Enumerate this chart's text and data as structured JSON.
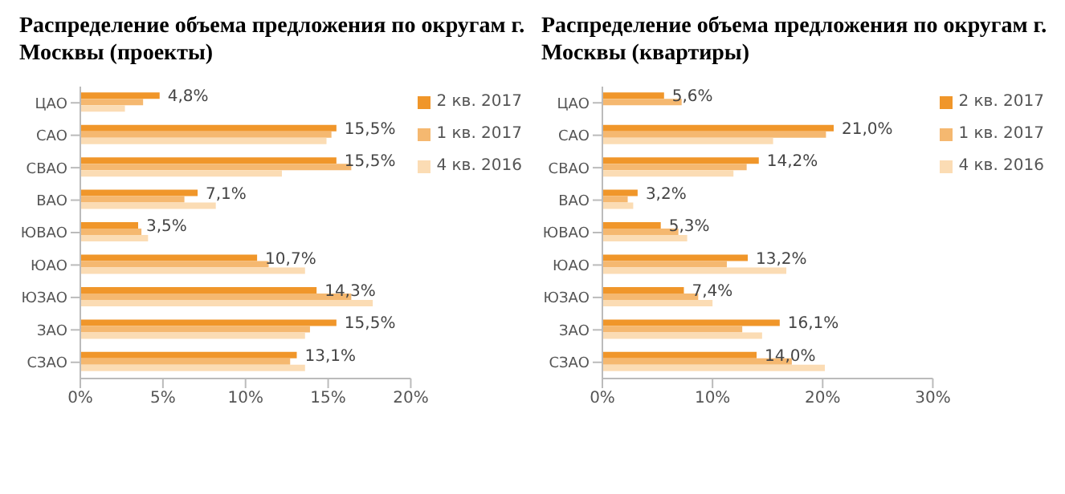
{
  "chart_data": [
    {
      "type": "bar",
      "orientation": "horizontal",
      "title": "Распределение объема предложения по округам г. Москвы (проекты)",
      "categories": [
        "ЦАО",
        "САО",
        "СВАО",
        "ВАО",
        "ЮВАО",
        "ЮАО",
        "ЮЗАО",
        "ЗАО",
        "СЗАО"
      ],
      "series": [
        {
          "name": "2 кв. 2017",
          "color": "#f0962a",
          "values": [
            4.8,
            15.5,
            15.5,
            7.1,
            3.5,
            10.7,
            14.3,
            15.5,
            13.1
          ],
          "value_labels": [
            "4,8%",
            "15,5%",
            "15,5%",
            "7,1%",
            "3,5%",
            "10,7%",
            "14,3%",
            "15,5%",
            "13,1%"
          ]
        },
        {
          "name": "1 кв. 2017",
          "color": "#f5b870",
          "values": [
            3.8,
            15.2,
            16.4,
            6.3,
            3.7,
            11.4,
            16.4,
            13.9,
            12.7
          ]
        },
        {
          "name": "4 кв. 2016",
          "color": "#fbdcb4",
          "values": [
            2.7,
            14.9,
            12.2,
            8.2,
            4.1,
            13.6,
            17.7,
            13.6,
            13.6
          ]
        }
      ],
      "xlim": [
        0,
        20
      ],
      "xticks": [
        {
          "value": 0,
          "label": "0%"
        },
        {
          "value": 5,
          "label": "5%"
        },
        {
          "value": 10,
          "label": "10%"
        },
        {
          "value": 15,
          "label": "15%"
        },
        {
          "value": 20,
          "label": "20%"
        }
      ],
      "legend": "right",
      "grid": false
    },
    {
      "type": "bar",
      "orientation": "horizontal",
      "title": "Распределение объема предложения по округам г. Москвы (квартиры)",
      "categories": [
        "ЦАО",
        "САО",
        "СВАО",
        "ВАО",
        "ЮВАО",
        "ЮАО",
        "ЮЗАО",
        "ЗАО",
        "СЗАО"
      ],
      "series": [
        {
          "name": "2 кв. 2017",
          "color": "#f0962a",
          "values": [
            5.6,
            21.0,
            14.2,
            3.2,
            5.3,
            13.2,
            7.4,
            16.1,
            14.0
          ],
          "value_labels": [
            "5,6%",
            "21,0%",
            "14,2%",
            "3,2%",
            "5,3%",
            "13,2%",
            "7,4%",
            "16,1%",
            "14,0%"
          ]
        },
        {
          "name": "1 кв. 2017",
          "color": "#f5b870",
          "values": [
            7.2,
            20.3,
            13.1,
            2.3,
            6.9,
            11.3,
            8.7,
            12.7,
            17.2
          ]
        },
        {
          "name": "4 кв. 2016",
          "color": "#fbdcb4",
          "values": [
            null,
            15.5,
            11.9,
            2.8,
            7.7,
            16.7,
            10.0,
            14.5,
            20.2
          ]
        }
      ],
      "xlim": [
        0,
        30
      ],
      "xticks": [
        {
          "value": 0,
          "label": "0%"
        },
        {
          "value": 10,
          "label": "10%"
        },
        {
          "value": 20,
          "label": "20%"
        },
        {
          "value": 30,
          "label": "30%"
        }
      ],
      "legend": "right",
      "grid": false
    }
  ]
}
